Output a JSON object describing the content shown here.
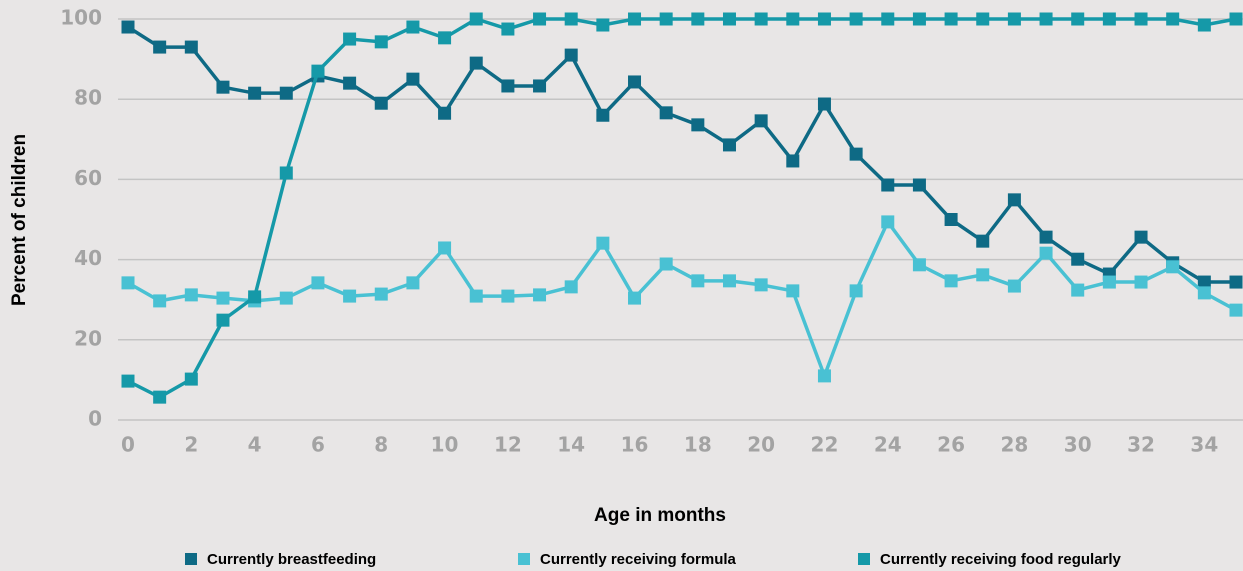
{
  "chart_data": {
    "type": "line",
    "x": [
      0,
      1,
      2,
      3,
      4,
      5,
      6,
      7,
      8,
      9,
      10,
      11,
      12,
      13,
      14,
      15,
      16,
      17,
      18,
      19,
      20,
      21,
      22,
      23,
      24,
      25,
      26,
      27,
      28,
      29,
      30,
      31,
      32,
      33,
      34,
      35
    ],
    "xlabel": "Age in months",
    "ylabel": "Percent of children",
    "xlim": [
      0,
      35
    ],
    "xticks": [
      0,
      2,
      4,
      6,
      8,
      10,
      12,
      14,
      16,
      18,
      20,
      22,
      24,
      26,
      28,
      30,
      32,
      34
    ],
    "ylim": [
      0,
      100
    ],
    "yticks": [
      0,
      20,
      40,
      60,
      80,
      100
    ],
    "grid": true,
    "legend": "bottom",
    "series": [
      {
        "name": "Currently breastfeeding",
        "color": "#0e6a85",
        "values": [
          98,
          93,
          93,
          83,
          81.5,
          81.5,
          85.8,
          84,
          79,
          85,
          76.5,
          89,
          83.3,
          83.3,
          91,
          76,
          84.3,
          76.6,
          73.6,
          68.6,
          74.6,
          64.6,
          78.8,
          66.3,
          58.6,
          58.6,
          50,
          44.6,
          54.9,
          45.6,
          40.1,
          36.4,
          45.6,
          39.2,
          34.4,
          34.4
        ]
      },
      {
        "name": "Currently receiving formula",
        "color": "#49c1d3",
        "values": [
          34.2,
          29.7,
          31.2,
          30.4,
          29.7,
          30.4,
          34.2,
          30.9,
          31.4,
          34.2,
          42.9,
          30.9,
          30.9,
          31.2,
          33.2,
          44.1,
          30.4,
          38.9,
          34.7,
          34.7,
          33.7,
          32.2,
          11,
          32.2,
          49.4,
          38.7,
          34.7,
          36.2,
          33.4,
          41.6,
          32.4,
          34.4,
          34.4,
          38.2,
          31.7,
          27.4
        ]
      },
      {
        "name": "Currently receiving food regularly",
        "color": "#1599a8",
        "values": [
          9.7,
          5.7,
          10.2,
          24.9,
          30.7,
          61.6,
          87,
          95,
          94.3,
          98,
          95.3,
          100,
          97.5,
          100,
          100,
          98.5,
          100,
          100,
          100,
          100,
          100,
          100,
          100,
          100,
          100,
          100,
          100,
          100,
          100,
          100,
          100,
          100,
          100,
          100,
          98.5,
          100
        ]
      }
    ]
  }
}
